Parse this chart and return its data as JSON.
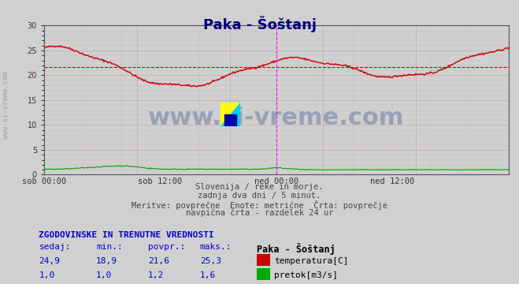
{
  "title": "Paka - Šoštanj",
  "bg_color": "#d0d0d0",
  "plot_bg_color": "#d0d0d0",
  "xlabel_ticks": [
    "sob 00:00",
    "sob 12:00",
    "ned 00:00",
    "ned 12:00"
  ],
  "xlabel_tick_positions": [
    0.0,
    0.25,
    0.5,
    0.75
  ],
  "ylim": [
    0,
    30
  ],
  "yticks": [
    0,
    5,
    10,
    15,
    20,
    25,
    30
  ],
  "temp_avg": 21.6,
  "temp_color": "#cc0000",
  "flow_color": "#00aa00",
  "vline_color": "#ff00ff",
  "vline_positions": [
    0.5,
    1.0
  ],
  "watermark_text": "www.si-vreme.com",
  "watermark_color": "#1a3a7a",
  "watermark_alpha": 0.3,
  "side_text": "www.si-vreme.com",
  "subtitle_lines": [
    "Slovenija / reke in morje.",
    "zadnja dva dni / 5 minut.",
    "Meritve: povprečne  Enote: metrične  Črta: povprečje",
    "navpična črta - razdelek 24 ur"
  ],
  "table_header": "ZGODOVINSKE IN TRENUTNE VREDNOSTI",
  "table_cols": [
    "sedaj:",
    "min.:",
    "povpr.:",
    "maks.:"
  ],
  "table_col_header": "Paka - Šoštanj",
  "temp_row": [
    "24,9",
    "18,9",
    "21,6",
    "25,3"
  ],
  "flow_row": [
    "1,0",
    "1,0",
    "1,2",
    "1,6"
  ],
  "temp_label": "temperatura[C]",
  "flow_label": "pretok[m3/s]",
  "n_points": 576
}
